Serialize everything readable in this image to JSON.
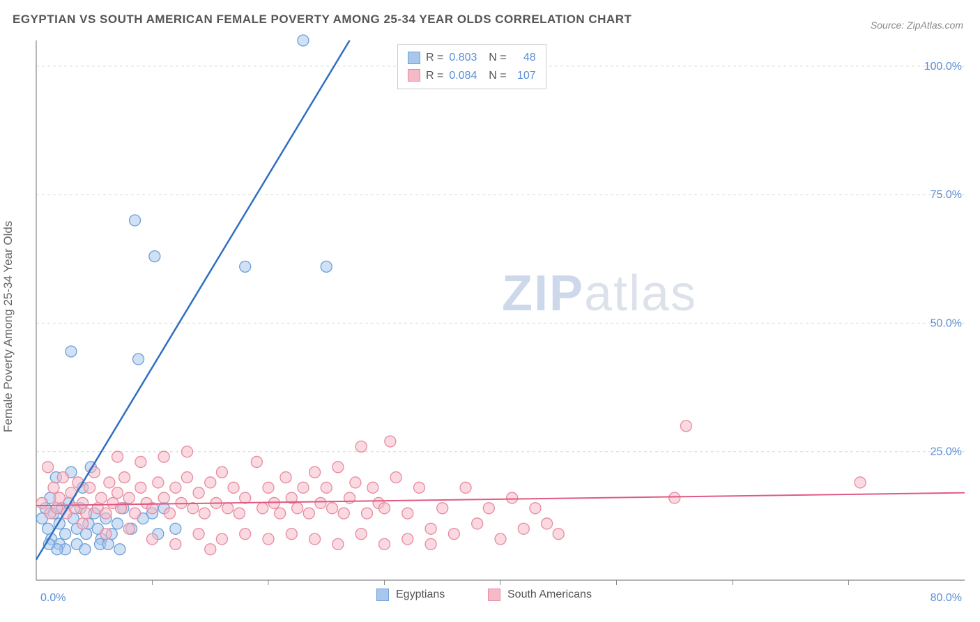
{
  "title": "EGYPTIAN VS SOUTH AMERICAN FEMALE POVERTY AMONG 25-34 YEAR OLDS CORRELATION CHART",
  "source": "Source: ZipAtlas.com",
  "chart": {
    "type": "scatter",
    "y_axis_label": "Female Poverty Among 25-34 Year Olds",
    "xlim": [
      0,
      80
    ],
    "ylim": [
      0,
      105
    ],
    "x_ticks": [
      {
        "pos": 0,
        "label": "0.0%"
      },
      {
        "pos": 80,
        "label": "80.0%"
      }
    ],
    "x_minor_ticks": [
      10,
      20,
      30,
      40,
      50,
      60,
      70
    ],
    "y_ticks": [
      {
        "pos": 25,
        "label": "25.0%"
      },
      {
        "pos": 50,
        "label": "50.0%"
      },
      {
        "pos": 75,
        "label": "75.0%"
      },
      {
        "pos": 100,
        "label": "100.0%"
      }
    ],
    "background_color": "#ffffff",
    "grid_color": "#d8d8d8",
    "grid_dash": "4,4",
    "axis_color": "#888888",
    "marker_radius": 8,
    "marker_opacity": 0.55,
    "series": [
      {
        "name": "Egyptians",
        "color_fill": "#a9c7ec",
        "color_stroke": "#6b9fd8",
        "line_color": "#2f6fc2",
        "line_width": 2.5,
        "R": "0.803",
        "N": "48",
        "trend": {
          "x1": 0,
          "y1": 4,
          "x2": 27,
          "y2": 105
        },
        "points": [
          [
            0.5,
            12
          ],
          [
            0.8,
            14
          ],
          [
            1.0,
            10
          ],
          [
            1.2,
            16
          ],
          [
            1.3,
            8
          ],
          [
            1.5,
            13
          ],
          [
            1.7,
            20
          ],
          [
            2.0,
            11
          ],
          [
            2.2,
            14
          ],
          [
            2.5,
            9
          ],
          [
            2.8,
            15
          ],
          [
            3.0,
            21
          ],
          [
            3.2,
            12
          ],
          [
            3.5,
            10
          ],
          [
            3.8,
            14
          ],
          [
            4.0,
            18
          ],
          [
            4.3,
            9
          ],
          [
            4.5,
            11
          ],
          [
            5.0,
            13
          ],
          [
            5.3,
            10
          ],
          [
            5.6,
            8
          ],
          [
            6.0,
            12
          ],
          [
            6.5,
            9
          ],
          [
            7.0,
            11
          ],
          [
            7.5,
            14
          ],
          [
            8.2,
            10
          ],
          [
            8.8,
            43
          ],
          [
            9.2,
            12
          ],
          [
            10,
            13
          ],
          [
            10.5,
            9
          ],
          [
            11,
            14
          ],
          [
            12,
            10
          ],
          [
            3,
            44.5
          ],
          [
            4.7,
            22
          ],
          [
            8.5,
            70
          ],
          [
            10.2,
            63
          ],
          [
            18,
            61
          ],
          [
            25,
            61
          ],
          [
            23,
            105
          ],
          [
            2,
            7
          ],
          [
            2.5,
            6
          ],
          [
            3.5,
            7
          ],
          [
            4.2,
            6
          ],
          [
            5.5,
            7
          ],
          [
            6.2,
            7
          ],
          [
            7.2,
            6
          ],
          [
            1.8,
            6
          ],
          [
            1.1,
            7
          ]
        ]
      },
      {
        "name": "South Americans",
        "color_fill": "#f5b9c7",
        "color_stroke": "#e78aa0",
        "line_color": "#e05a82",
        "line_width": 2,
        "R": "0.084",
        "N": "107",
        "trend": {
          "x1": 0,
          "y1": 14.5,
          "x2": 80,
          "y2": 17
        },
        "points": [
          [
            0.5,
            15
          ],
          [
            1,
            22
          ],
          [
            1.2,
            13
          ],
          [
            1.5,
            18
          ],
          [
            1.8,
            14
          ],
          [
            2,
            16
          ],
          [
            2.3,
            20
          ],
          [
            2.6,
            13
          ],
          [
            3,
            17
          ],
          [
            3.3,
            14
          ],
          [
            3.6,
            19
          ],
          [
            4,
            15
          ],
          [
            4.3,
            13
          ],
          [
            4.6,
            18
          ],
          [
            5,
            21
          ],
          [
            5.3,
            14
          ],
          [
            5.6,
            16
          ],
          [
            6,
            13
          ],
          [
            6.3,
            19
          ],
          [
            6.6,
            15
          ],
          [
            7,
            17
          ],
          [
            7.3,
            14
          ],
          [
            7.6,
            20
          ],
          [
            8,
            16
          ],
          [
            8.5,
            13
          ],
          [
            9,
            18
          ],
          [
            9.5,
            15
          ],
          [
            10,
            14
          ],
          [
            10.5,
            19
          ],
          [
            11,
            16
          ],
          [
            11.5,
            13
          ],
          [
            12,
            18
          ],
          [
            12.5,
            15
          ],
          [
            13,
            20
          ],
          [
            13.5,
            14
          ],
          [
            14,
            17
          ],
          [
            14.5,
            13
          ],
          [
            15,
            19
          ],
          [
            15.5,
            15
          ],
          [
            16,
            21
          ],
          [
            16.5,
            14
          ],
          [
            17,
            18
          ],
          [
            17.5,
            13
          ],
          [
            18,
            16
          ],
          [
            19,
            23
          ],
          [
            19.5,
            14
          ],
          [
            20,
            18
          ],
          [
            20.5,
            15
          ],
          [
            21,
            13
          ],
          [
            21.5,
            20
          ],
          [
            22,
            16
          ],
          [
            22.5,
            14
          ],
          [
            23,
            18
          ],
          [
            23.5,
            13
          ],
          [
            24,
            21
          ],
          [
            24.5,
            15
          ],
          [
            25,
            18
          ],
          [
            25.5,
            14
          ],
          [
            26,
            22
          ],
          [
            26.5,
            13
          ],
          [
            27,
            16
          ],
          [
            27.5,
            19
          ],
          [
            28,
            26
          ],
          [
            28.5,
            13
          ],
          [
            29,
            18
          ],
          [
            29.5,
            15
          ],
          [
            30,
            14
          ],
          [
            31,
            20
          ],
          [
            32,
            13
          ],
          [
            33,
            18
          ],
          [
            34,
            10
          ],
          [
            35,
            14
          ],
          [
            36,
            9
          ],
          [
            37,
            18
          ],
          [
            38,
            11
          ],
          [
            39,
            14
          ],
          [
            40,
            8
          ],
          [
            41,
            16
          ],
          [
            42,
            10
          ],
          [
            43,
            14
          ],
          [
            24,
            8
          ],
          [
            26,
            7
          ],
          [
            28,
            9
          ],
          [
            30,
            7
          ],
          [
            32,
            8
          ],
          [
            34,
            7
          ],
          [
            18,
            9
          ],
          [
            20,
            8
          ],
          [
            22,
            9
          ],
          [
            15,
            6
          ],
          [
            16,
            8
          ],
          [
            44,
            11
          ],
          [
            45,
            9
          ],
          [
            10,
            8
          ],
          [
            12,
            7
          ],
          [
            14,
            9
          ],
          [
            8,
            10
          ],
          [
            6,
            9
          ],
          [
            4,
            11
          ],
          [
            56,
            30
          ],
          [
            55,
            16
          ],
          [
            71,
            19
          ],
          [
            7,
            24
          ],
          [
            9,
            23
          ],
          [
            11,
            24
          ],
          [
            13,
            25
          ],
          [
            30.5,
            27
          ]
        ]
      }
    ],
    "bottom_legend": [
      {
        "label": "Egyptians",
        "fill": "#a9c7ec",
        "stroke": "#6b9fd8"
      },
      {
        "label": "South Americans",
        "fill": "#f5b9c7",
        "stroke": "#e78aa0"
      }
    ],
    "watermark": {
      "zip": "ZIP",
      "atlas": "atlas"
    }
  }
}
